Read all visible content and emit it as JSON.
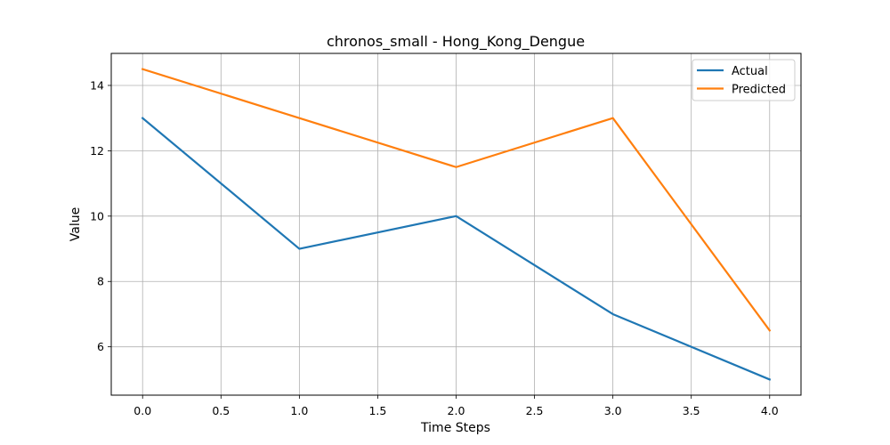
{
  "chart_data": {
    "type": "line",
    "title": "chronos_small - Hong_Kong_Dengue",
    "xlabel": "Time Steps",
    "ylabel": "Value",
    "x": [
      0,
      1,
      2,
      3,
      4
    ],
    "series": [
      {
        "name": "Actual",
        "values": [
          13,
          9,
          10,
          7,
          5
        ],
        "color": "#1f77b4"
      },
      {
        "name": "Predicted",
        "values": [
          14.5,
          13,
          11.5,
          13,
          6.5
        ],
        "color": "#ff7f0e"
      }
    ],
    "xlim": [
      -0.2,
      4.2
    ],
    "ylim": [
      4.52,
      14.98
    ],
    "xticks": [
      0.0,
      0.5,
      1.0,
      1.5,
      2.0,
      2.5,
      3.0,
      3.5,
      4.0
    ],
    "xtick_labels": [
      "0.0",
      "0.5",
      "1.0",
      "1.5",
      "2.0",
      "2.5",
      "3.0",
      "3.5",
      "4.0"
    ],
    "yticks": [
      6,
      8,
      10,
      12,
      14
    ],
    "ytick_labels": [
      "6",
      "8",
      "10",
      "12",
      "14"
    ],
    "grid": true,
    "legend_position": "top-right"
  }
}
